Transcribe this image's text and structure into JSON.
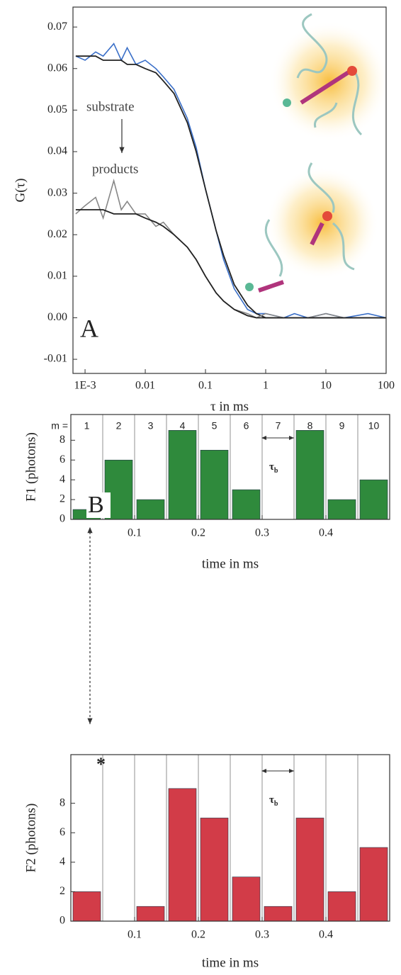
{
  "chart_data": [
    {
      "type": "line",
      "panel_label": "A",
      "ylabel": "G(τ)",
      "xlabel": "τ in ms",
      "xscale": "log",
      "x": [
        0.0007,
        0.001,
        0.0015,
        0.002,
        0.003,
        0.004,
        0.005,
        0.007,
        0.01,
        0.015,
        0.02,
        0.03,
        0.05,
        0.07,
        0.1,
        0.15,
        0.2,
        0.3,
        0.5,
        0.7,
        1,
        2,
        3,
        5,
        10,
        20,
        50,
        100
      ],
      "series": [
        {
          "name": "substrate",
          "color": "#3a6fc8",
          "values": [
            0.063,
            0.062,
            0.064,
            0.063,
            0.066,
            0.062,
            0.065,
            0.061,
            0.062,
            0.06,
            0.058,
            0.055,
            0.048,
            0.041,
            0.031,
            0.021,
            0.014,
            0.007,
            0.002,
            0.001,
            0.001,
            0.0,
            0.001,
            0.0,
            0.001,
            0.0,
            0.001,
            0.0
          ]
        },
        {
          "color": "#222222",
          "values": [
            0.063,
            0.063,
            0.063,
            0.062,
            0.062,
            0.062,
            0.061,
            0.061,
            0.06,
            0.059,
            0.057,
            0.054,
            0.047,
            0.04,
            0.031,
            0.021,
            0.015,
            0.008,
            0.003,
            0.001,
            0.0,
            0.0,
            0.0,
            0.0,
            0.0,
            0.0,
            0.0,
            0.0
          ]
        },
        {
          "name": "products",
          "color": "#888888",
          "values": [
            0.025,
            0.027,
            0.029,
            0.024,
            0.033,
            0.026,
            0.028,
            0.025,
            0.025,
            0.022,
            0.023,
            0.02,
            0.017,
            0.014,
            0.01,
            0.006,
            0.004,
            0.002,
            0.001,
            0.0,
            0.001,
            0.0,
            0.0,
            0.0,
            0.001,
            0.0,
            0.0,
            0.0
          ]
        },
        {
          "color": "#222222",
          "values": [
            0.026,
            0.026,
            0.026,
            0.026,
            0.025,
            0.025,
            0.025,
            0.025,
            0.024,
            0.023,
            0.022,
            0.02,
            0.017,
            0.014,
            0.01,
            0.006,
            0.004,
            0.002,
            0.0005,
            0.0,
            0.0,
            0.0,
            0.0,
            0.0,
            0.0,
            0.0,
            0.0,
            0.0
          ]
        }
      ],
      "xlim": [
        0.00063,
        100
      ],
      "xticks": [
        {
          "value": 0.001,
          "label": "1E-3"
        },
        0.01,
        0.1,
        1,
        10,
        100
      ],
      "ylim": [
        -0.0134,
        0.0748
      ],
      "yticks": [
        -0.01,
        {
          "value": 0,
          "label": "0.00"
        },
        0.01,
        0.02,
        0.03,
        0.04,
        0.05,
        0.06,
        0.07
      ]
    },
    {
      "type": "histogram",
      "panel_label": "B",
      "ylabel": "F1 (photons)",
      "xlabel": "time in ms",
      "category_prefix": "m =",
      "categories": [
        "1",
        "2",
        "3",
        "4",
        "5",
        "6",
        "7",
        "8",
        "9",
        "10"
      ],
      "bins": [
        0,
        0.05,
        0.1,
        0.15,
        0.2,
        0.25,
        0.3,
        0.35,
        0.4,
        0.45,
        0.5
      ],
      "values": [
        1,
        6,
        2,
        9,
        7,
        3,
        0,
        9,
        2,
        4
      ],
      "color": "#2f8a3c",
      "xlim": [
        0,
        0.5
      ],
      "xticks": [
        0.1,
        0.2,
        0.3,
        0.4
      ],
      "ylim": [
        0,
        10.6
      ],
      "yticks": [
        0,
        2,
        4,
        6,
        8
      ],
      "annotation": {
        "text": "τ",
        "subscript": "b"
      }
    },
    {
      "type": "histogram",
      "ylabel": "F2 (photons)",
      "xlabel": "time in ms",
      "marker_label": "*",
      "bins": [
        0,
        0.05,
        0.1,
        0.15,
        0.2,
        0.25,
        0.3,
        0.35,
        0.4,
        0.45,
        0.5
      ],
      "values": [
        2,
        0,
        1,
        9,
        7,
        3,
        1,
        7,
        2,
        5
      ],
      "color": "#d23c48",
      "xlim": [
        0,
        0.5
      ],
      "xticks": [
        0.1,
        0.2,
        0.3,
        0.4
      ],
      "ylim": [
        0,
        11.3
      ],
      "yticks": [
        0,
        2,
        4,
        6,
        8
      ],
      "annotation": {
        "text": "τ",
        "subscript": "b"
      }
    }
  ]
}
